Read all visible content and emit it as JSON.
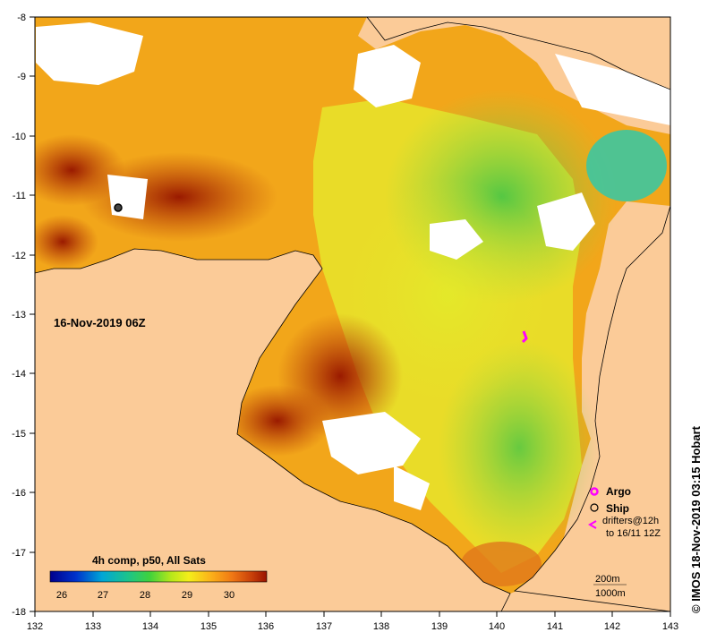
{
  "map": {
    "date_label": "16-Nov-2019 06Z",
    "composite_label": "4h comp, p50, All Sats",
    "credit": "© IMOS 18-Nov-2019 03:15 Hobart",
    "x_ticks": [
      "132",
      "133",
      "134",
      "135",
      "136",
      "137",
      "138",
      "139",
      "140",
      "141",
      "142",
      "143"
    ],
    "y_ticks": [
      "-8",
      "-9",
      "-10",
      "-11",
      "-12",
      "-13",
      "-14",
      "-15",
      "-16",
      "-17",
      "-18"
    ],
    "colorbar_ticks": [
      "26",
      "27",
      "28",
      "29",
      "30"
    ],
    "legend": {
      "argo": "Argo",
      "ship": "Ship",
      "drifters_line1": "drifters@12h",
      "drifters_line2": "to 16/11 12Z"
    },
    "contours": {
      "line1": "200m",
      "line2": "1000m"
    },
    "colors": {
      "land": "#fbcb98",
      "nodata": "#ffffff",
      "argo": "#ff00ff"
    }
  }
}
